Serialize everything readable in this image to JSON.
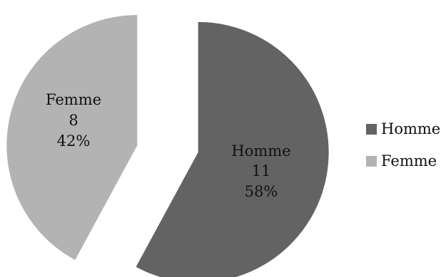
{
  "chart_data": {
    "type": "pie",
    "exploded": true,
    "legend_position": "right",
    "slices": [
      {
        "label": "Homme",
        "value": 11,
        "percent": "58%",
        "value_text": "11",
        "color": "#636363"
      },
      {
        "label": "Femme",
        "value": 8,
        "percent": "42%",
        "value_text": "8",
        "color": "#b3b3b3"
      }
    ],
    "legend": [
      {
        "label": "Homme",
        "color": "#636363"
      },
      {
        "label": "Femme",
        "color": "#b3b3b3"
      }
    ]
  }
}
